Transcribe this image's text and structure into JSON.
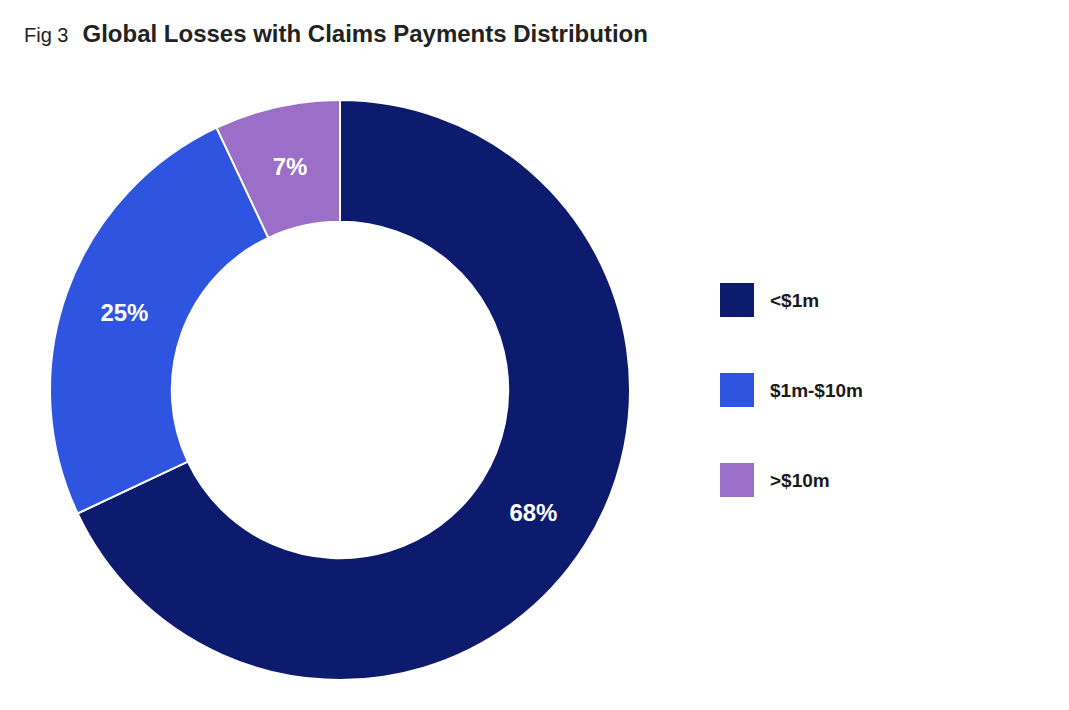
{
  "chart_data": {
    "type": "donut",
    "title": "Global Losses with Claims Payments Distribution",
    "annotations": [
      "Fig 3"
    ],
    "categories": [
      "<$1m",
      "$1m-$10m",
      ">$10m"
    ],
    "values": [
      68,
      25,
      7
    ],
    "value_labels": [
      "68%",
      "25%",
      "7%"
    ],
    "colors": [
      "#0d1b6e",
      "#2f55e0",
      "#9b6ec8"
    ],
    "data_labels": true,
    "legend": "right"
  }
}
